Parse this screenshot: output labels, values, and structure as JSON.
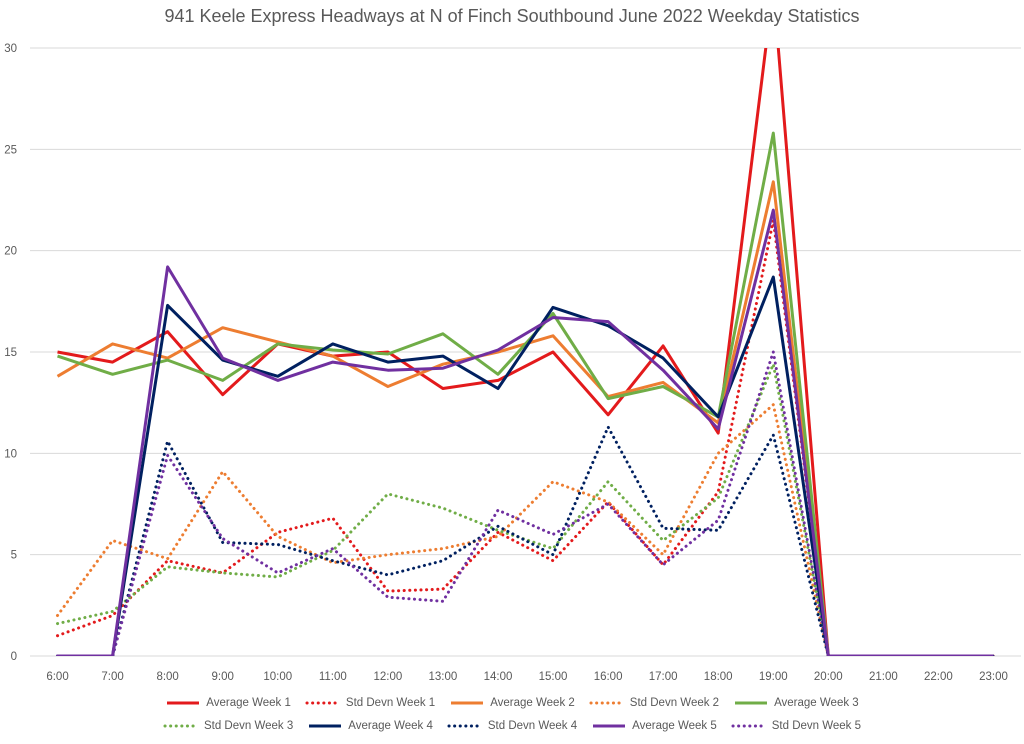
{
  "chart_data": {
    "type": "line",
    "title": "941 Keele Express Headways at N of Finch Southbound June 2022 Weekday Statistics",
    "xlabel": "",
    "ylabel": "",
    "categories": [
      "6:00",
      "7:00",
      "8:00",
      "9:00",
      "10:00",
      "11:00",
      "12:00",
      "13:00",
      "14:00",
      "15:00",
      "16:00",
      "17:00",
      "18:00",
      "19:00",
      "20:00",
      "21:00",
      "22:00",
      "23:00"
    ],
    "ylim": [
      0,
      30
    ],
    "yticks": [
      0,
      5,
      10,
      15,
      20,
      25,
      30
    ],
    "grid": "horizontal",
    "legend_position": "bottom",
    "series": [
      {
        "name": "Average Week 1",
        "color": "#e31a1c",
        "style": "solid",
        "values": [
          15.0,
          14.5,
          16.0,
          12.9,
          15.4,
          14.8,
          15.0,
          13.2,
          13.6,
          15.0,
          11.9,
          15.3,
          11.0,
          33.0,
          0,
          0,
          0,
          0
        ]
      },
      {
        "name": "Std Devn Week 1",
        "color": "#e31a1c",
        "style": "dotted",
        "values": [
          1.0,
          2.0,
          4.7,
          4.1,
          6.1,
          6.8,
          3.2,
          3.3,
          6.1,
          4.7,
          7.6,
          4.5,
          8.1,
          21.5,
          0,
          0,
          0,
          0
        ]
      },
      {
        "name": "Average Week 2",
        "color": "#ed7d31",
        "style": "solid",
        "values": [
          13.8,
          15.4,
          14.7,
          16.2,
          15.5,
          14.8,
          13.3,
          14.4,
          15.0,
          15.8,
          12.8,
          13.5,
          11.5,
          23.4,
          0,
          0,
          0,
          0
        ]
      },
      {
        "name": "Std Devn Week 2",
        "color": "#ed7d31",
        "style": "dotted",
        "values": [
          2.0,
          5.7,
          4.8,
          9.1,
          5.9,
          4.6,
          5.0,
          5.3,
          5.9,
          8.6,
          7.6,
          5.0,
          10.0,
          12.4,
          0,
          0,
          0,
          0
        ]
      },
      {
        "name": "Average Week 3",
        "color": "#70ad47",
        "style": "solid",
        "values": [
          14.8,
          13.9,
          14.6,
          13.6,
          15.4,
          15.1,
          14.9,
          15.9,
          13.9,
          16.9,
          12.7,
          13.3,
          11.8,
          25.8,
          0,
          0,
          0,
          0
        ]
      },
      {
        "name": "Std Devn Week 3",
        "color": "#70ad47",
        "style": "dotted",
        "values": [
          1.6,
          2.2,
          4.4,
          4.1,
          3.9,
          5.2,
          8.0,
          7.3,
          6.2,
          5.3,
          8.6,
          5.7,
          7.8,
          14.4,
          0,
          0,
          0,
          0
        ]
      },
      {
        "name": "Average Week 4",
        "color": "#002060",
        "style": "solid",
        "values": [
          0,
          0,
          17.3,
          14.6,
          13.8,
          15.4,
          14.5,
          14.8,
          13.2,
          17.2,
          16.3,
          14.7,
          11.8,
          18.7,
          0,
          0,
          0,
          0
        ]
      },
      {
        "name": "Std Devn Week 4",
        "color": "#002060",
        "style": "dotted",
        "values": [
          0,
          0,
          10.6,
          5.6,
          5.5,
          4.7,
          4.0,
          4.7,
          6.4,
          5.0,
          11.3,
          6.3,
          6.2,
          10.9,
          0,
          0,
          0,
          0
        ]
      },
      {
        "name": "Average Week 5",
        "color": "#7030a0",
        "style": "solid",
        "values": [
          0,
          0,
          19.2,
          14.7,
          13.6,
          14.5,
          14.1,
          14.2,
          15.1,
          16.7,
          16.5,
          14.1,
          11.2,
          22.0,
          0,
          0,
          0,
          0
        ]
      },
      {
        "name": "Std Devn Week 5",
        "color": "#7030a0",
        "style": "dotted",
        "values": [
          0,
          0,
          9.9,
          5.8,
          4.1,
          5.3,
          2.9,
          2.7,
          7.2,
          6.0,
          7.5,
          4.5,
          6.7,
          15.0,
          0,
          0,
          0,
          0
        ]
      }
    ]
  }
}
